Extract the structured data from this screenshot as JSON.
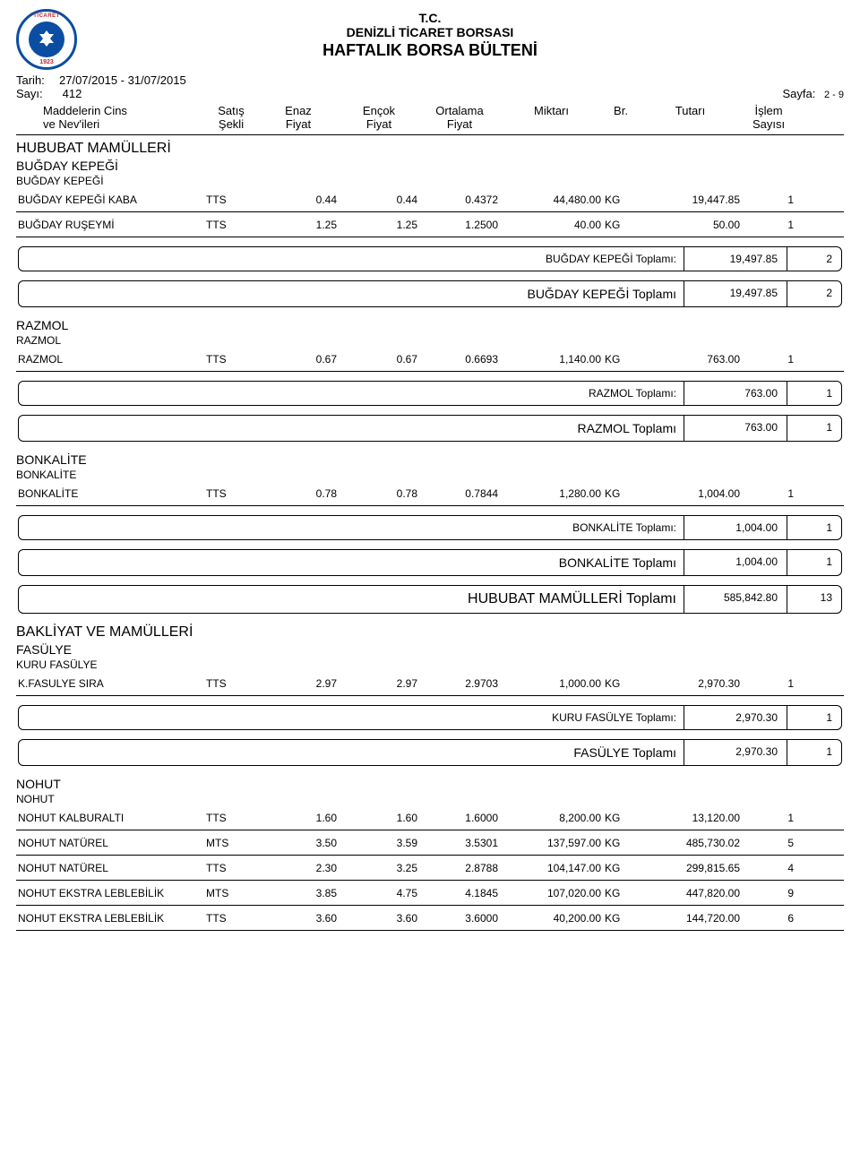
{
  "header": {
    "line1": "T.C.",
    "line2": "DENİZLİ TİCARET BORSASI",
    "line3": "HAFTALIK BORSA BÜLTENİ",
    "logo_top": "TİCARET",
    "logo_year": "1923"
  },
  "meta": {
    "tarih_label": "Tarih:",
    "tarih_value": "27/07/2015    - 31/07/2015",
    "sayi_label": "Sayı:",
    "sayi_value": "412",
    "sayfa_label": "Sayfa:",
    "sayfa_value": "2 - 9"
  },
  "columns": {
    "name1": "Maddelerin Cins",
    "name2": "ve Nev'ileri",
    "sekli1": "Satış",
    "sekli2": "Şekli",
    "enaz1": "Enaz",
    "enaz2": "Fiyat",
    "encok1": "Ençok",
    "encok2": "Fiyat",
    "ort1": "Ortalama",
    "ort2": "Fiyat",
    "miktar": "Miktarı",
    "br": "Br.",
    "tutar": "Tutarı",
    "islem1": "İşlem",
    "islem2": "Sayısı"
  },
  "sections": {
    "hububat": {
      "title": "HUBUBAT MAMÜLLERİ",
      "kepegi_h2": "BUĞDAY KEPEĞİ",
      "kepegi_h3": "BUĞDAY KEPEĞİ",
      "rows": [
        {
          "name": "BUĞDAY KEPEĞİ KABA",
          "sekli": "TTS",
          "enaz": "0.44",
          "encok": "0.44",
          "ort": "0.4372",
          "miktar": "44,480.00",
          "br": "KG",
          "tutar": "19,447.85",
          "islem": "1"
        },
        {
          "name": "BUĞDAY RUŞEYMİ",
          "sekli": "TTS",
          "enaz": "1.25",
          "encok": "1.25",
          "ort": "1.2500",
          "miktar": "40.00",
          "br": "KG",
          "tutar": "50.00",
          "islem": "1"
        }
      ],
      "sub1": {
        "label": "BUĞDAY KEPEĞİ  Toplamı:",
        "tutar": "19,497.85",
        "islem": "2"
      },
      "sub2": {
        "label": "BUĞDAY KEPEĞİ  Toplamı",
        "tutar": "19,497.85",
        "islem": "2"
      }
    },
    "razmol": {
      "h2": "RAZMOL",
      "h3": "RAZMOL",
      "rows": [
        {
          "name": "RAZMOL",
          "sekli": "TTS",
          "enaz": "0.67",
          "encok": "0.67",
          "ort": "0.6693",
          "miktar": "1,140.00",
          "br": "KG",
          "tutar": "763.00",
          "islem": "1"
        }
      ],
      "sub1": {
        "label": "RAZMOL  Toplamı:",
        "tutar": "763.00",
        "islem": "1"
      },
      "sub2": {
        "label": "RAZMOL  Toplamı",
        "tutar": "763.00",
        "islem": "1"
      }
    },
    "bonkalite": {
      "h2": "BONKALİTE",
      "h3": "BONKALİTE",
      "rows": [
        {
          "name": "BONKALİTE",
          "sekli": "TTS",
          "enaz": "0.78",
          "encok": "0.78",
          "ort": "0.7844",
          "miktar": "1,280.00",
          "br": "KG",
          "tutar": "1,004.00",
          "islem": "1"
        }
      ],
      "sub1": {
        "label": "BONKALİTE  Toplamı:",
        "tutar": "1,004.00",
        "islem": "1"
      },
      "sub2": {
        "label": "BONKALİTE  Toplamı",
        "tutar": "1,004.00",
        "islem": "1"
      }
    },
    "hububat_total": {
      "label": "HUBUBAT MAMÜLLERİ  Toplamı",
      "tutar": "585,842.80",
      "islem": "13"
    },
    "bakliyat": {
      "title": "BAKLİYAT VE MAMÜLLERİ",
      "fasulye_h2": "FASÜLYE",
      "fasulye_h3": "KURU FASÜLYE",
      "rows": [
        {
          "name": "K.FASULYE SIRA",
          "sekli": "TTS",
          "enaz": "2.97",
          "encok": "2.97",
          "ort": "2.9703",
          "miktar": "1,000.00",
          "br": "KG",
          "tutar": "2,970.30",
          "islem": "1"
        }
      ],
      "sub1": {
        "label": "KURU FASÜLYE  Toplamı:",
        "tutar": "2,970.30",
        "islem": "1"
      },
      "sub2": {
        "label": "FASÜLYE  Toplamı",
        "tutar": "2,970.30",
        "islem": "1"
      }
    },
    "nohut": {
      "h2": "NOHUT",
      "h3": "NOHUT",
      "rows": [
        {
          "name": "NOHUT KALBURALTI",
          "sekli": "TTS",
          "enaz": "1.60",
          "encok": "1.60",
          "ort": "1.6000",
          "miktar": "8,200.00",
          "br": "KG",
          "tutar": "13,120.00",
          "islem": "1"
        },
        {
          "name": "NOHUT NATÜREL",
          "sekli": "MTS",
          "enaz": "3.50",
          "encok": "3.59",
          "ort": "3.5301",
          "miktar": "137,597.00",
          "br": "KG",
          "tutar": "485,730.02",
          "islem": "5"
        },
        {
          "name": "NOHUT NATÜREL",
          "sekli": "TTS",
          "enaz": "2.30",
          "encok": "3.25",
          "ort": "2.8788",
          "miktar": "104,147.00",
          "br": "KG",
          "tutar": "299,815.65",
          "islem": "4"
        },
        {
          "name": "NOHUT EKSTRA LEBLEBİLİK",
          "sekli": "MTS",
          "enaz": "3.85",
          "encok": "4.75",
          "ort": "4.1845",
          "miktar": "107,020.00",
          "br": "KG",
          "tutar": "447,820.00",
          "islem": "9"
        },
        {
          "name": "NOHUT EKSTRA LEBLEBİLİK",
          "sekli": "TTS",
          "enaz": "3.60",
          "encok": "3.60",
          "ort": "3.6000",
          "miktar": "40,200.00",
          "br": "KG",
          "tutar": "144,720.00",
          "islem": "6"
        }
      ]
    }
  }
}
